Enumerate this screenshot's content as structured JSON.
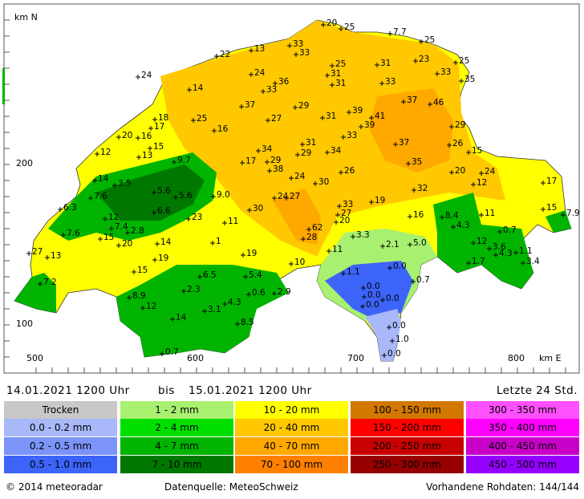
{
  "axes": {
    "y_title": "km N",
    "x_title": "km E",
    "y_labels": [
      "200",
      "100"
    ],
    "x_labels": [
      "500",
      "600",
      "700",
      "800"
    ]
  },
  "stations": [
    "20",
    "25",
    "7.7",
    "25",
    "13",
    "33",
    "33",
    "22",
    "25",
    "31",
    "23",
    "25",
    "24",
    "24",
    "31",
    "33",
    "35",
    "36",
    "14",
    "33",
    "31",
    "33",
    "37",
    "29",
    "37",
    "46",
    "18",
    "25",
    "27",
    "31",
    "39",
    "41",
    "17",
    "16",
    "39",
    "29",
    "20",
    "16",
    "33",
    "15",
    "31",
    "37",
    "26",
    "12",
    "13",
    "34",
    "29",
    "34",
    "15",
    "17",
    "29",
    "35",
    "38",
    "9.7",
    "26",
    "20",
    "24",
    "14",
    "24",
    "12",
    "3.5",
    "30",
    "17",
    "32",
    "5.6",
    "9.0",
    "24",
    "27",
    "5.6",
    "7.6",
    "19",
    "33",
    "27",
    "6.3",
    "30",
    "6.6",
    "15",
    "7.9",
    "12",
    "23",
    "20",
    "16",
    "8.4",
    "11",
    "11",
    "7.4",
    "4.3",
    "62",
    "0.7",
    "7.6",
    "2.8",
    "3.3",
    "15",
    "28",
    "20",
    "14",
    "1",
    "2.1",
    "5.0",
    "12",
    "3.6",
    "4.3",
    "1.1",
    "27",
    "13",
    "19",
    "11",
    "19",
    "3.4",
    "10",
    "1.7",
    "15",
    "1.1",
    "0.0",
    "6.5",
    "5.4",
    "0.7",
    "7.2",
    "0.0",
    "2.3",
    "0.6",
    "2.9",
    "8.9",
    "0.0",
    "0.0",
    "4.3",
    "0.0",
    "12",
    "3.1",
    "14",
    "8.5",
    "0.0",
    "1.0",
    "0.7",
    "0.0"
  ],
  "period": {
    "from": "14.01.2021 1200 Uhr",
    "to_word": "bis",
    "to": "15.01.2021 1200 Uhr",
    "window": "Letzte 24 Std."
  },
  "legend": [
    [
      {
        "label": "Trocken",
        "color": "#c8c8c8"
      },
      {
        "label": "0.0 - 0.2 mm",
        "color": "#a8b8f8"
      },
      {
        "label": "0.2 - 0.5 mm",
        "color": "#7c94f8"
      },
      {
        "label": "0.5 - 1.0 mm",
        "color": "#3c64f8"
      }
    ],
    [
      {
        "label": "1 - 2 mm",
        "color": "#a8f070"
      },
      {
        "label": "2 - 4 mm",
        "color": "#00e000"
      },
      {
        "label": "4 - 7 mm",
        "color": "#00b400"
      },
      {
        "label": "7 - 10 mm",
        "color": "#007800"
      }
    ],
    [
      {
        "label": "10 - 20 mm",
        "color": "#ffff00"
      },
      {
        "label": "20 - 40 mm",
        "color": "#ffc800"
      },
      {
        "label": "40 - 70 mm",
        "color": "#ffa800"
      },
      {
        "label": "70 - 100 mm",
        "color": "#ff8000"
      }
    ],
    [
      {
        "label": "100 - 150 mm",
        "color": "#d27800"
      },
      {
        "label": "150 - 200 mm",
        "color": "#ff0000"
      },
      {
        "label": "200 - 250 mm",
        "color": "#c80000"
      },
      {
        "label": "250 - 300 mm",
        "color": "#960000"
      }
    ],
    [
      {
        "label": "300 - 350 mm",
        "color": "#ff50ff"
      },
      {
        "label": "350 - 400 mm",
        "color": "#ff00ff"
      },
      {
        "label": "400 - 450 mm",
        "color": "#c800c8"
      },
      {
        "label": "450 - 500 mm",
        "color": "#9600ff"
      }
    ]
  ],
  "footer": {
    "copyright": "© 2014 meteoradar",
    "source": "Datenquelle: MeteoSchweiz",
    "raw": "Vorhandene Rohdaten: 144/144"
  }
}
